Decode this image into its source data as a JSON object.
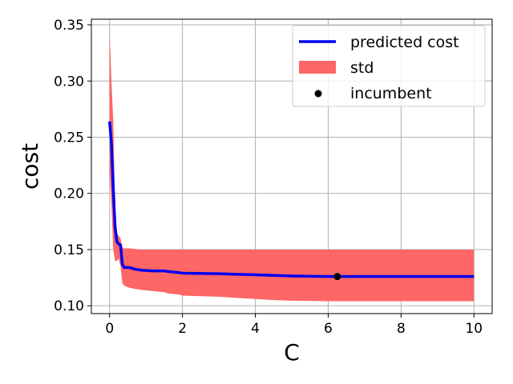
{
  "chart_data": {
    "type": "line",
    "title": "",
    "xlabel": "C",
    "ylabel": "cost",
    "xlim": [
      -0.5,
      10.5
    ],
    "ylim": [
      0.093,
      0.355
    ],
    "xticks": [
      0,
      2,
      4,
      6,
      8,
      10
    ],
    "xtick_labels": [
      "0",
      "2",
      "4",
      "6",
      "8",
      "10"
    ],
    "yticks": [
      0.1,
      0.15,
      0.2,
      0.25,
      0.3,
      0.35
    ],
    "ytick_labels": [
      "0.10",
      "0.15",
      "0.20",
      "0.25",
      "0.30",
      "0.35"
    ],
    "grid": true,
    "legend_position": "top-right",
    "legend": [
      "predicted cost",
      "std",
      "incumbent"
    ],
    "colors": {
      "predicted": "#0000ee",
      "std": "#ff6666",
      "incumbent": "#000000",
      "grid": "#b0b0b0"
    },
    "series": [
      {
        "name": "predicted cost",
        "x": [
          0.0,
          0.05,
          0.1,
          0.15,
          0.2,
          0.25,
          0.3,
          0.35,
          0.4,
          0.45,
          0.55,
          0.7,
          0.9,
          1.2,
          1.5,
          1.6,
          1.9,
          2.0,
          3.0,
          3.5,
          4.0,
          4.5,
          5.0,
          6.0,
          7.0,
          8.0,
          9.0,
          10.0
        ],
        "y": [
          0.264,
          0.245,
          0.205,
          0.17,
          0.157,
          0.155,
          0.154,
          0.137,
          0.134,
          0.134,
          0.134,
          0.1325,
          0.1315,
          0.131,
          0.131,
          0.1305,
          0.1295,
          0.129,
          0.1285,
          0.128,
          0.1275,
          0.127,
          0.1265,
          0.126,
          0.126,
          0.126,
          0.126,
          0.126
        ]
      },
      {
        "name": "std",
        "x": [
          0.0,
          0.05,
          0.1,
          0.15,
          0.2,
          0.25,
          0.3,
          0.35,
          0.4,
          0.45,
          0.55,
          0.7,
          0.9,
          1.2,
          1.5,
          1.6,
          1.9,
          2.0,
          3.0,
          3.5,
          4.0,
          4.5,
          5.0,
          6.0,
          7.0,
          8.0,
          9.0,
          10.0
        ],
        "upper": [
          0.345,
          0.3,
          0.265,
          0.19,
          0.165,
          0.162,
          0.16,
          0.152,
          0.151,
          0.151,
          0.151,
          0.1505,
          0.15,
          0.15,
          0.15,
          0.15,
          0.15,
          0.15,
          0.15,
          0.15,
          0.15,
          0.15,
          0.15,
          0.15,
          0.15,
          0.15,
          0.15,
          0.15
        ],
        "lower": [
          0.22,
          0.19,
          0.15,
          0.14,
          0.14,
          0.142,
          0.135,
          0.12,
          0.118,
          0.117,
          0.116,
          0.115,
          0.114,
          0.113,
          0.112,
          0.111,
          0.11,
          0.109,
          0.108,
          0.107,
          0.106,
          0.105,
          0.1045,
          0.104,
          0.104,
          0.104,
          0.104,
          0.104
        ]
      }
    ],
    "incumbent": {
      "x": 6.25,
      "y": 0.126
    }
  }
}
